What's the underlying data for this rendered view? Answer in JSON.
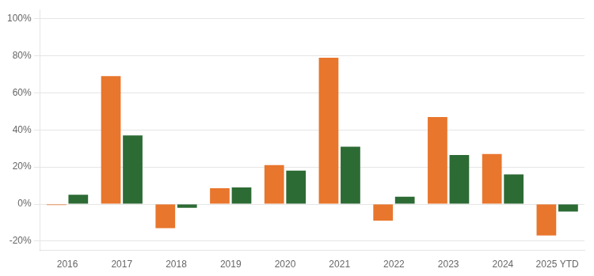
{
  "chart_data": {
    "type": "bar",
    "categories": [
      "2016",
      "2017",
      "2018",
      "2019",
      "2020",
      "2021",
      "2022",
      "2023",
      "2024",
      "2025 YTD"
    ],
    "series": [
      {
        "color": "#E8762D",
        "values": [
          -0.005,
          0.69,
          -0.13,
          0.085,
          0.21,
          0.79,
          -0.09,
          0.47,
          0.27,
          -0.17
        ]
      },
      {
        "color": "#2D6B34",
        "values": [
          0.05,
          0.37,
          -0.02,
          0.09,
          0.18,
          0.31,
          0.04,
          0.265,
          0.16,
          -0.04
        ]
      }
    ],
    "ylim": [
      -0.25,
      1.05
    ],
    "yticks": [
      {
        "value": -0.2,
        "label": "-20%"
      },
      {
        "value": 0.0,
        "label": "0%"
      },
      {
        "value": 0.2,
        "label": "20%"
      },
      {
        "value": 0.4,
        "label": "40%"
      },
      {
        "value": 0.6,
        "label": "60%"
      },
      {
        "value": 0.8,
        "label": "80%"
      },
      {
        "value": 1.0,
        "label": "100%"
      }
    ],
    "grid": "y"
  }
}
